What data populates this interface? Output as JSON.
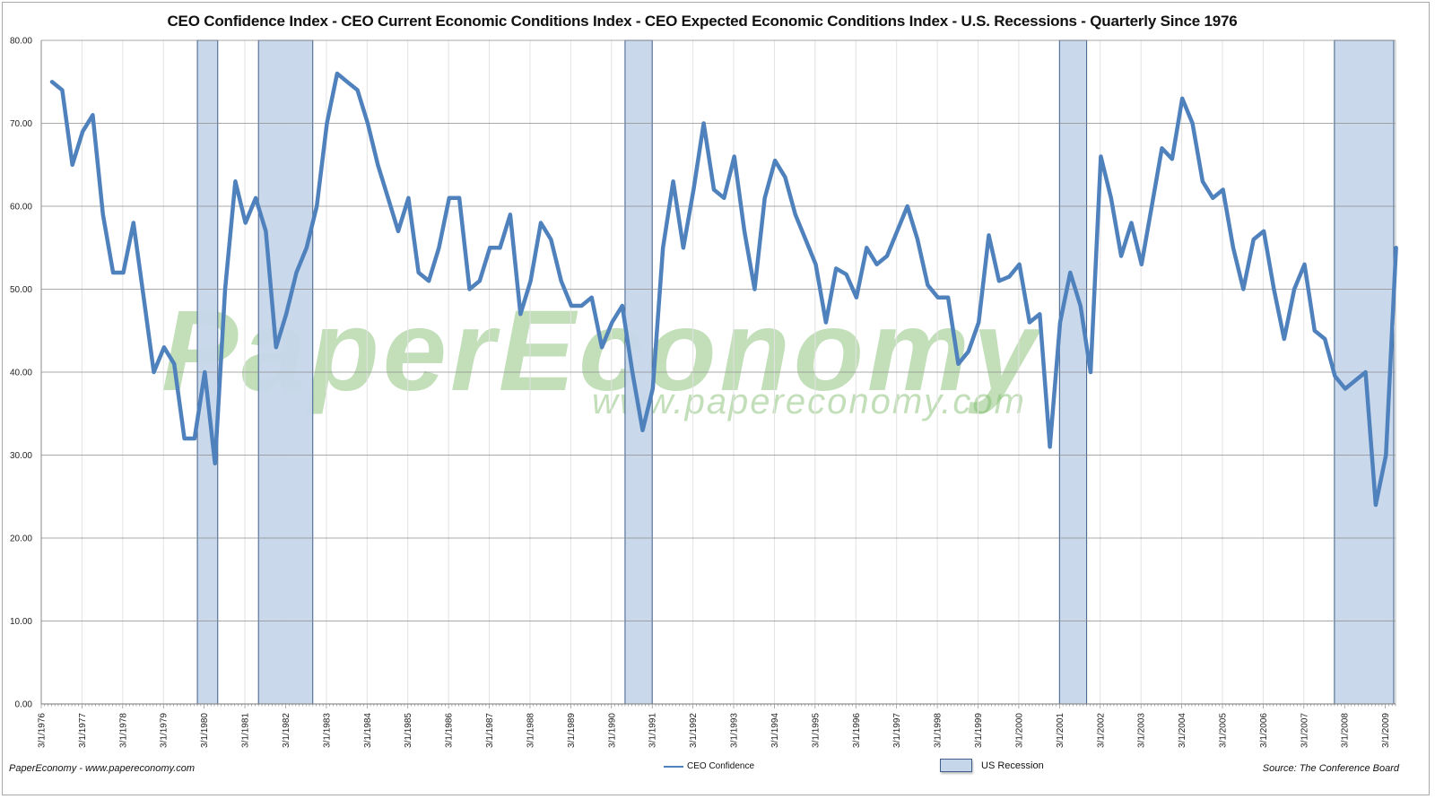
{
  "title": "CEO Confidence Index - CEO Current Economic Conditions Index - CEO  Expected Economic Conditions Index - U.S. Recessions - Quarterly Since 1976",
  "footer": {
    "left": "PaperEconomy - www.papereconomy.com",
    "right": "Source: The Conference Board"
  },
  "legend": {
    "series_label": "CEO Confidence",
    "recession_label": "US Recession"
  },
  "watermark": {
    "main": "PaperEconomy",
    "url": "www.papereconomy.com"
  },
  "colors": {
    "line": "#4f81bd",
    "recession_fill": "#c6d6ea",
    "recession_border": "#3f5f8a",
    "gridline": "#8c8c8c",
    "vertical_grid": "#e2e2e2",
    "watermark": "#7fbf6a"
  },
  "chart_data": {
    "type": "line",
    "title": "CEO Confidence Index - CEO Current Economic Conditions Index - CEO  Expected Economic Conditions Index - U.S. Recessions - Quarterly Since 1976",
    "xlabel": "",
    "ylabel": "",
    "ylim": [
      0,
      80
    ],
    "yticks": [
      "0.00",
      "10.00",
      "20.00",
      "30.00",
      "40.00",
      "50.00",
      "60.00",
      "70.00",
      "80.00"
    ],
    "xticks": [
      "3/1/1976",
      "3/1/1977",
      "3/1/1978",
      "3/1/1979",
      "3/1/1980",
      "3/1/1981",
      "3/1/1982",
      "3/1/1983",
      "3/1/1984",
      "3/1/1985",
      "3/1/1986",
      "3/1/1987",
      "3/1/1988",
      "3/1/1989",
      "3/1/1990",
      "3/1/1991",
      "3/1/1992",
      "3/1/1993",
      "3/1/1994",
      "3/1/1995",
      "3/1/1996",
      "3/1/1997",
      "3/1/1998",
      "3/1/1999",
      "3/1/2000",
      "3/1/2001",
      "3/1/2002",
      "3/1/2003",
      "3/1/2004",
      "3/1/2005",
      "3/1/2006",
      "3/1/2007",
      "3/1/2008",
      "3/1/2009"
    ],
    "grid": true,
    "legend_position": "bottom",
    "x_start": "1976-Q2",
    "x_frequency": "quarterly",
    "series": [
      {
        "name": "CEO Confidence",
        "values": [
          75,
          74,
          65,
          69,
          71,
          59,
          52,
          52,
          58,
          49,
          40,
          43,
          41,
          32,
          32,
          40,
          29,
          50,
          63,
          58,
          61,
          57,
          43,
          47,
          52,
          55,
          60,
          70,
          76,
          75,
          74,
          70,
          65,
          61,
          57,
          61,
          52,
          51,
          55,
          61,
          61,
          50,
          51,
          55,
          55,
          59,
          47,
          51,
          58,
          56,
          51,
          48,
          48,
          49,
          43,
          46,
          48,
          40,
          33,
          38,
          55,
          63,
          55,
          62,
          70,
          62,
          61,
          66,
          57,
          50,
          61,
          65.5,
          63.5,
          59,
          56,
          53,
          46,
          52.5,
          51.8,
          49,
          55,
          53,
          54,
          57,
          60,
          56,
          50.5,
          49,
          49,
          41,
          42.5,
          46,
          56.5,
          51,
          51.5,
          53,
          46,
          47,
          31,
          46,
          52,
          48,
          40,
          66,
          61,
          54,
          58,
          53,
          60,
          67,
          65.7,
          73,
          70,
          63,
          61,
          62,
          55,
          50,
          56,
          57,
          50,
          44,
          50,
          53,
          45,
          44,
          39.5,
          38,
          39,
          40,
          24,
          30,
          55
        ]
      },
      {
        "name": "US Recession",
        "periods": [
          {
            "start": "1980-01",
            "end": "1980-07"
          },
          {
            "start": "1981-07",
            "end": "1982-11"
          },
          {
            "start": "1990-07",
            "end": "1991-03"
          },
          {
            "start": "2001-03",
            "end": "2001-11"
          },
          {
            "start": "2007-12",
            "end": "2009-06"
          }
        ]
      }
    ]
  }
}
